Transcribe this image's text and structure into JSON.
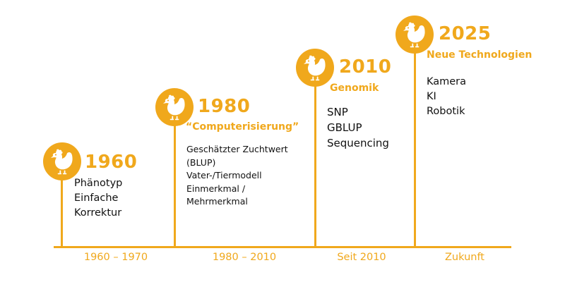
{
  "accent_color": "#f0a81c",
  "milestones": [
    {
      "year": "1960",
      "subtitle": "",
      "icon": "chicken-icon",
      "items": [
        "Phänotyp",
        "Einfache",
        "Korrektur"
      ]
    },
    {
      "year": "1980",
      "subtitle": "“Computerisierung”",
      "icon": "chicken-icon",
      "items": [
        "Geschätzter Zuchtwert",
        "(BLUP)",
        "Vater-/Tiermodell",
        "Einmerkmal /",
        "Mehrmerkmal"
      ]
    },
    {
      "year": "2010",
      "subtitle": "Genomik",
      "icon": "chicken-icon",
      "items": [
        "SNP",
        "GBLUP",
        "Sequencing"
      ]
    },
    {
      "year": "2025",
      "subtitle": "Neue Technologien",
      "icon": "chicken-icon",
      "items": [
        "Kamera",
        "KI",
        "Robotik"
      ]
    }
  ],
  "periods": [
    "1960 – 1970",
    "1980 – 2010",
    "Seit 2010",
    "Zukunft"
  ]
}
